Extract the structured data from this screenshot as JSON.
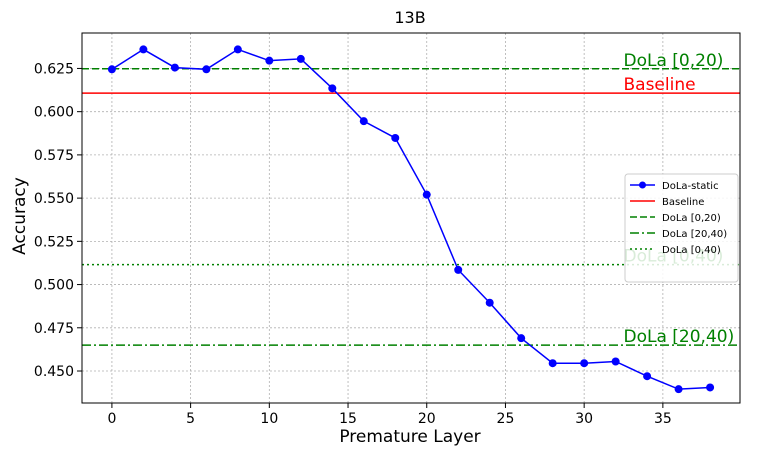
{
  "chart_data": {
    "type": "line",
    "title": "13B",
    "xlabel": "Premature Layer",
    "ylabel": "Accuracy",
    "xlim": [
      -1.9,
      39.9
    ],
    "ylim": [
      0.4315,
      0.6455
    ],
    "xticks": [
      0,
      5,
      10,
      15,
      20,
      25,
      30,
      35
    ],
    "yticks": [
      0.45,
      0.475,
      0.5,
      0.525,
      0.55,
      0.575,
      0.6,
      0.625
    ],
    "ytick_labels": [
      "0.450",
      "0.475",
      "0.500",
      "0.525",
      "0.550",
      "0.575",
      "0.600",
      "0.625"
    ],
    "grid": true,
    "legend_position": "center-right",
    "series": [
      {
        "name": "DoLa-static",
        "color": "#0000ff",
        "marker": "circle",
        "x": [
          0,
          2,
          4,
          6,
          8,
          10,
          12,
          14,
          16,
          18,
          20,
          22,
          24,
          26,
          28,
          30,
          32,
          34,
          36,
          38
        ],
        "y": [
          0.6245,
          0.636,
          0.6255,
          0.6245,
          0.636,
          0.6295,
          0.6305,
          0.6135,
          0.5945,
          0.5848,
          0.552,
          0.5085,
          0.4895,
          0.469,
          0.4545,
          0.4545,
          0.4555,
          0.447,
          0.4395,
          0.4405
        ]
      }
    ],
    "reference_lines": [
      {
        "name": "Baseline",
        "y": 0.6107,
        "color": "#ff0000",
        "style": "solid",
        "label": "Baseline"
      },
      {
        "name": "DoLa [0,20)",
        "y": 0.6248,
        "color": "#008000",
        "style": "dashed",
        "label": "DoLa [0,20)"
      },
      {
        "name": "DoLa [20,40)",
        "y": 0.465,
        "color": "#008000",
        "style": "dashdot",
        "label": "DoLa [20,40)"
      },
      {
        "name": "DoLa [0,40)",
        "y": 0.5115,
        "color": "#008000",
        "style": "dotted",
        "label": "DoLa [0,40)"
      }
    ]
  }
}
